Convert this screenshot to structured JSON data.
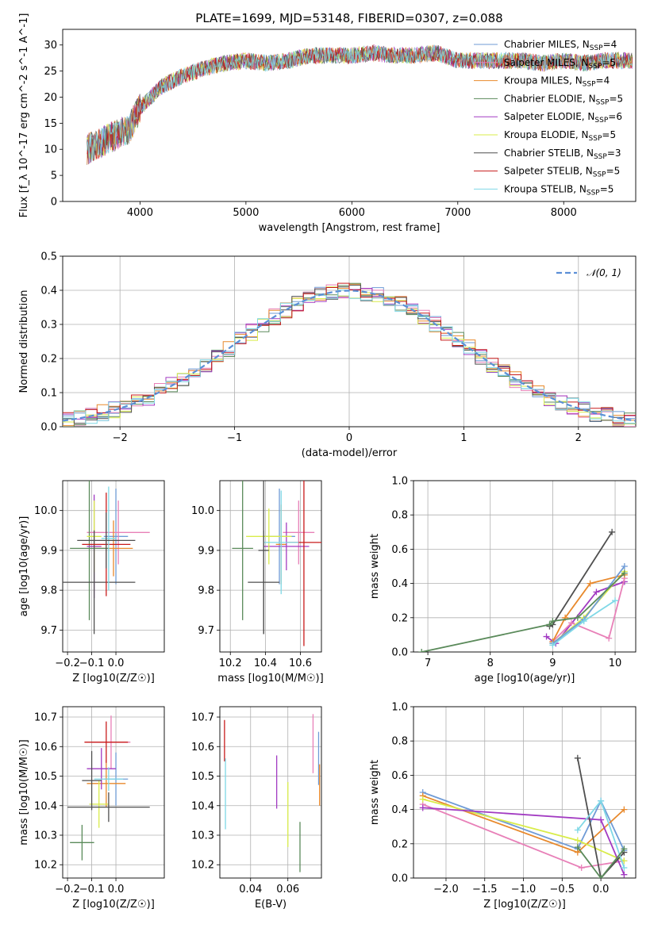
{
  "figure": {
    "title": "PLATE=1699, MJD=53148, FIBERID=0307, z=0.088"
  },
  "models": [
    {
      "name": "Chabrier MILES",
      "nssp": "4",
      "color": "#6f9bd6"
    },
    {
      "name": "Salpeter MILES",
      "nssp": "5",
      "color": "#e880b8"
    },
    {
      "name": "Kroupa MILES",
      "nssp": "4",
      "color": "#e8892c"
    },
    {
      "name": "Chabrier ELODIE",
      "nssp": "5",
      "color": "#5a8a5a"
    },
    {
      "name": "Salpeter ELODIE",
      "nssp": "6",
      "color": "#a23bc2"
    },
    {
      "name": "Kroupa ELODIE",
      "nssp": "5",
      "color": "#d9ec4a"
    },
    {
      "name": "Chabrier STELIB",
      "nssp": "3",
      "color": "#4f4f4f"
    },
    {
      "name": "Salpeter STELIB",
      "nssp": "5",
      "color": "#c81b1b"
    },
    {
      "name": "Kroupa STELIB",
      "nssp": "5",
      "color": "#7fd8e6"
    }
  ],
  "chart_data": [
    {
      "id": "spectrum",
      "type": "line",
      "xlabel": "wavelength [Angstrom, rest frame]",
      "ylabel": "Flux [f_λ 10^-17 erg cm^-2 s^-1 A^-1]",
      "xlim": [
        3270,
        8680
      ],
      "ylim": [
        0,
        33
      ],
      "xticks": [
        4000,
        5000,
        6000,
        7000,
        8000
      ],
      "yticks": [
        0,
        5,
        10,
        15,
        20,
        25,
        30
      ],
      "grid": false,
      "legend": "right",
      "x": [
        3500,
        3700,
        3900,
        4000,
        4200,
        4400,
        4600,
        4800,
        5000,
        5200,
        5400,
        5600,
        5800,
        6000,
        6200,
        6400,
        6600,
        6800,
        7000,
        7200,
        7400,
        7600,
        7800,
        8000,
        8200,
        8400,
        8650
      ],
      "y": [
        10,
        12,
        14,
        18,
        22,
        24,
        25.5,
        26.5,
        27,
        26.5,
        27,
        28,
        28,
        28,
        28.5,
        28,
        28,
        28.5,
        27,
        27,
        27,
        27,
        26.5,
        27,
        26.5,
        27,
        27
      ]
    },
    {
      "id": "residuals",
      "type": "line",
      "xlabel": "(data-model)/error",
      "ylabel": "Normed distribution",
      "xlim": [
        -2.5,
        2.5
      ],
      "ylim": [
        0,
        0.5
      ],
      "xticks": [
        -2,
        -1,
        0,
        1,
        2
      ],
      "yticks": [
        0.0,
        0.1,
        0.2,
        0.3,
        0.4,
        0.5
      ],
      "grid": true,
      "legend": "top-right",
      "series": [
        {
          "name": "𝒩(0, 1)",
          "color": "#5b8fd6",
          "style": "dashed"
        }
      ]
    },
    {
      "id": "age_vs_Z",
      "type": "scatter",
      "xlabel": "Z [log10(Z/Z☉)]",
      "ylabel": "age [log10(age/yr)]",
      "xlim": [
        -0.22,
        0.2
      ],
      "ylim": [
        9.645,
        10.075
      ],
      "xticks": [
        -0.2,
        -0.1,
        0.0
      ],
      "yticks": [
        9.7,
        9.8,
        9.9,
        10.0
      ],
      "grid": true,
      "points": [
        {
          "model": "Chabrier MILES",
          "x": 0.0,
          "y": 9.935,
          "xerr": 0.05,
          "yerr": 0.12
        },
        {
          "model": "Salpeter MILES",
          "x": 0.01,
          "y": 9.945,
          "xerr": 0.13,
          "yerr": 0.08
        },
        {
          "model": "Kroupa MILES",
          "x": -0.01,
          "y": 9.905,
          "xerr": 0.08,
          "yerr": 0.07
        },
        {
          "model": "Chabrier ELODIE",
          "x": -0.11,
          "y": 9.905,
          "xerr": 0.08,
          "yerr": 0.18
        },
        {
          "model": "Salpeter ELODIE",
          "x": -0.09,
          "y": 9.91,
          "xerr": 0.03,
          "yerr": 0.13
        },
        {
          "model": "Kroupa ELODIE",
          "x": -0.09,
          "y": 9.935,
          "xerr": 0.03,
          "yerr": 0.09
        },
        {
          "model": "Chabrier STELIB",
          "x": -0.09,
          "y": 9.82,
          "xerr": 0.17,
          "yerr": 0.13
        },
        {
          "model": "Salpeter STELIB",
          "x": -0.04,
          "y": 9.915,
          "xerr": 0.1,
          "yerr": 0.13
        },
        {
          "model": "Kroupa STELIB",
          "x": -0.03,
          "y": 9.93,
          "xerr": 0.03,
          "yerr": 0.13
        },
        {
          "model": "Chabrier STELIB",
          "x": -0.04,
          "y": 9.925,
          "xerr": 0.12,
          "yerr": 0.07
        }
      ]
    },
    {
      "id": "age_vs_mass",
      "type": "scatter",
      "xlabel": "mass [log10(M/M☉)]",
      "ylabel": "",
      "xlim": [
        10.14,
        10.72
      ],
      "ylim": [
        9.645,
        10.075
      ],
      "xticks": [
        10.2,
        10.4,
        10.6
      ],
      "yticks": [
        9.7,
        9.8,
        9.9,
        10.0
      ],
      "grid": true,
      "points": [
        {
          "model": "Chabrier MILES",
          "x": 10.48,
          "y": 9.935,
          "xerr": 0.09,
          "yerr": 0.12
        },
        {
          "model": "Salpeter MILES",
          "x": 10.59,
          "y": 9.945,
          "xerr": 0.09,
          "yerr": 0.08
        },
        {
          "model": "Kroupa MILES",
          "x": 10.49,
          "y": 9.915,
          "xerr": 0.03,
          "yerr": 0.1
        },
        {
          "model": "Chabrier ELODIE",
          "x": 10.27,
          "y": 9.905,
          "xerr": 0.06,
          "yerr": 0.18
        },
        {
          "model": "Salpeter ELODIE",
          "x": 10.52,
          "y": 9.91,
          "xerr": 0.13,
          "yerr": 0.06
        },
        {
          "model": "Kroupa ELODIE",
          "x": 10.42,
          "y": 9.935,
          "xerr": 0.13,
          "yerr": 0.07
        },
        {
          "model": "Chabrier STELIB",
          "x": 10.39,
          "y": 9.82,
          "xerr": 0.09,
          "yerr": 0.13
        },
        {
          "model": "Salpeter STELIB",
          "x": 10.62,
          "y": 9.92,
          "xerr": 0.1,
          "yerr": 0.26
        },
        {
          "model": "Kroupa STELIB",
          "x": 10.49,
          "y": 9.92,
          "xerr": 0.1,
          "yerr": 0.13
        },
        {
          "model": "Chabrier STELIB",
          "x": 10.39,
          "y": 9.9,
          "xerr": 0.03,
          "yerr": 0.21
        }
      ]
    },
    {
      "id": "weight_vs_age",
      "type": "line",
      "xlabel": "age [log10(age/yr)]",
      "ylabel": "mass weight",
      "xlim": [
        6.77,
        10.33
      ],
      "ylim": [
        0,
        1.0
      ],
      "xticks": [
        7,
        8,
        9,
        10
      ],
      "yticks": [
        0.0,
        0.2,
        0.4,
        0.6,
        0.8,
        1.0
      ],
      "grid": true,
      "series": [
        {
          "model": "Chabrier STELIB",
          "x": [
            8.95,
            9.0,
            9.95
          ],
          "y": [
            0.15,
            0.16,
            0.7
          ]
        },
        {
          "model": "Salpeter ELODIE",
          "x": [
            8.9,
            9.05,
            9.7,
            10.15
          ],
          "y": [
            0.09,
            0.05,
            0.35,
            0.41
          ]
        },
        {
          "model": "Salpeter MILES",
          "x": [
            9.0,
            9.3,
            9.9,
            10.15
          ],
          "y": [
            0.06,
            0.17,
            0.08,
            0.43
          ]
        },
        {
          "model": "Kroupa ELODIE",
          "x": [
            9.0,
            9.5,
            10.15
          ],
          "y": [
            0.05,
            0.2,
            0.47
          ]
        },
        {
          "model": "Kroupa MILES",
          "x": [
            9.0,
            9.2,
            9.6,
            10.15
          ],
          "y": [
            0.06,
            0.2,
            0.4,
            0.45
          ]
        },
        {
          "model": "Chabrier MILES",
          "x": [
            9.0,
            9.5,
            10.15
          ],
          "y": [
            0.05,
            0.19,
            0.5
          ]
        },
        {
          "model": "Kroupa STELIB",
          "x": [
            9.0,
            9.5,
            10.0
          ],
          "y": [
            0.04,
            0.18,
            0.3
          ]
        },
        {
          "model": "Chabrier ELODIE",
          "x": [
            6.9,
            8.95,
            9.0,
            9.4,
            10.15
          ],
          "y": [
            0.0,
            0.16,
            0.18,
            0.2,
            0.46
          ]
        }
      ]
    },
    {
      "id": "mass_vs_Z",
      "type": "scatter",
      "xlabel": "Z [log10(Z/Z☉)]",
      "ylabel": "mass [log10(M/M☉)]",
      "xlim": [
        -0.22,
        0.2
      ],
      "ylim": [
        10.155,
        10.735
      ],
      "xticks": [
        -0.2,
        -0.1,
        0.0
      ],
      "yticks": [
        10.2,
        10.3,
        10.4,
        10.5,
        10.6,
        10.7
      ],
      "grid": true,
      "points": [
        {
          "model": "Chabrier MILES",
          "x": 0.0,
          "y": 10.49,
          "xerr": 0.05,
          "yerr": 0.09
        },
        {
          "model": "Salpeter MILES",
          "x": -0.02,
          "y": 10.615,
          "xerr": 0.08,
          "yerr": 0.09
        },
        {
          "model": "Kroupa MILES",
          "x": -0.04,
          "y": 10.475,
          "xerr": 0.08,
          "yerr": 0.08
        },
        {
          "model": "Chabrier ELODIE",
          "x": -0.14,
          "y": 10.275,
          "xerr": 0.05,
          "yerr": 0.06
        },
        {
          "model": "Salpeter ELODIE",
          "x": -0.06,
          "y": 10.525,
          "xerr": 0.06,
          "yerr": 0.07
        },
        {
          "model": "Kroupa ELODIE",
          "x": -0.07,
          "y": 10.405,
          "xerr": 0.04,
          "yerr": 0.08
        },
        {
          "model": "Chabrier STELIB",
          "x": -0.03,
          "y": 10.395,
          "xerr": 0.17,
          "yerr": 0.05
        },
        {
          "model": "Salpeter STELIB",
          "x": -0.04,
          "y": 10.615,
          "xerr": 0.09,
          "yerr": 0.07
        },
        {
          "model": "Kroupa STELIB",
          "x": -0.03,
          "y": 10.49,
          "xerr": 0.06,
          "yerr": 0.04
        },
        {
          "model": "Chabrier STELIB",
          "x": -0.1,
          "y": 10.485,
          "xerr": 0.04,
          "yerr": 0.1
        }
      ]
    },
    {
      "id": "mass_vs_EBV",
      "type": "scatter",
      "xlabel": "E(B-V)",
      "ylabel": "",
      "xlim": [
        0.0235,
        0.078
      ],
      "ylim": [
        10.155,
        10.735
      ],
      "xticks": [
        0.04,
        0.06
      ],
      "yticks": [
        10.2,
        10.3,
        10.4,
        10.5,
        10.6,
        10.7
      ],
      "grid": true,
      "points": [
        {
          "model": "Chabrier MILES",
          "x": 0.0765,
          "y": 10.56,
          "xerr": 0,
          "yerr": 0.09
        },
        {
          "model": "Salpeter MILES",
          "x": 0.0735,
          "y": 10.61,
          "xerr": 0,
          "yerr": 0.1
        },
        {
          "model": "Kroupa MILES",
          "x": 0.077,
          "y": 10.47,
          "xerr": 0,
          "yerr": 0.07
        },
        {
          "model": "Chabrier ELODIE",
          "x": 0.0665,
          "y": 10.26,
          "xerr": 0,
          "yerr": 0.085
        },
        {
          "model": "Salpeter ELODIE",
          "x": 0.054,
          "y": 10.48,
          "xerr": 0,
          "yerr": 0.09
        },
        {
          "model": "Kroupa ELODIE",
          "x": 0.06,
          "y": 10.37,
          "xerr": 0,
          "yerr": 0.11
        },
        {
          "model": "Salpeter STELIB",
          "x": 0.026,
          "y": 10.62,
          "xerr": 0,
          "yerr": 0.07
        },
        {
          "model": "Kroupa STELIB",
          "x": 0.0265,
          "y": 10.44,
          "xerr": 0,
          "yerr": 0.12
        }
      ]
    },
    {
      "id": "weight_vs_Z",
      "type": "line",
      "xlabel": "Z [log10(Z/Z☉)]",
      "ylabel": "mass weight",
      "xlim": [
        -2.42,
        0.45
      ],
      "ylim": [
        0,
        1.0
      ],
      "xticks": [
        -2.0,
        -1.5,
        -1.0,
        -0.5,
        0.0
      ],
      "yticks": [
        0.0,
        0.2,
        0.4,
        0.6,
        0.8,
        1.0
      ],
      "grid": true,
      "series": [
        {
          "model": "Chabrier MILES",
          "x": [
            -2.3,
            -0.3,
            0.0,
            0.3
          ],
          "y": [
            0.5,
            0.17,
            0.45,
            0.16
          ]
        },
        {
          "model": "Salpeter MILES",
          "x": [
            -2.3,
            -0.25,
            0.3
          ],
          "y": [
            0.43,
            0.06,
            0.1
          ]
        },
        {
          "model": "Kroupa MILES",
          "x": [
            -2.3,
            -0.3,
            0.3
          ],
          "y": [
            0.48,
            0.15,
            0.4
          ]
        },
        {
          "model": "Kroupa ELODIE",
          "x": [
            -2.3,
            -0.3,
            0.3
          ],
          "y": [
            0.46,
            0.22,
            0.1
          ]
        },
        {
          "model": "Salpeter ELODIE",
          "x": [
            -2.3,
            0.0,
            0.3
          ],
          "y": [
            0.41,
            0.34,
            0.02
          ]
        },
        {
          "model": "Chabrier STELIB",
          "x": [
            -0.3,
            0.0,
            0.3
          ],
          "y": [
            0.7,
            0.0,
            0.15
          ]
        },
        {
          "model": "Kroupa STELIB",
          "x": [
            -0.3,
            0.0,
            0.3
          ],
          "y": [
            0.28,
            0.45,
            0.06
          ]
        },
        {
          "model": "Chabrier ELODIE",
          "x": [
            -0.3,
            0.0,
            0.3
          ],
          "y": [
            0.18,
            0.0,
            0.17
          ]
        }
      ]
    }
  ]
}
